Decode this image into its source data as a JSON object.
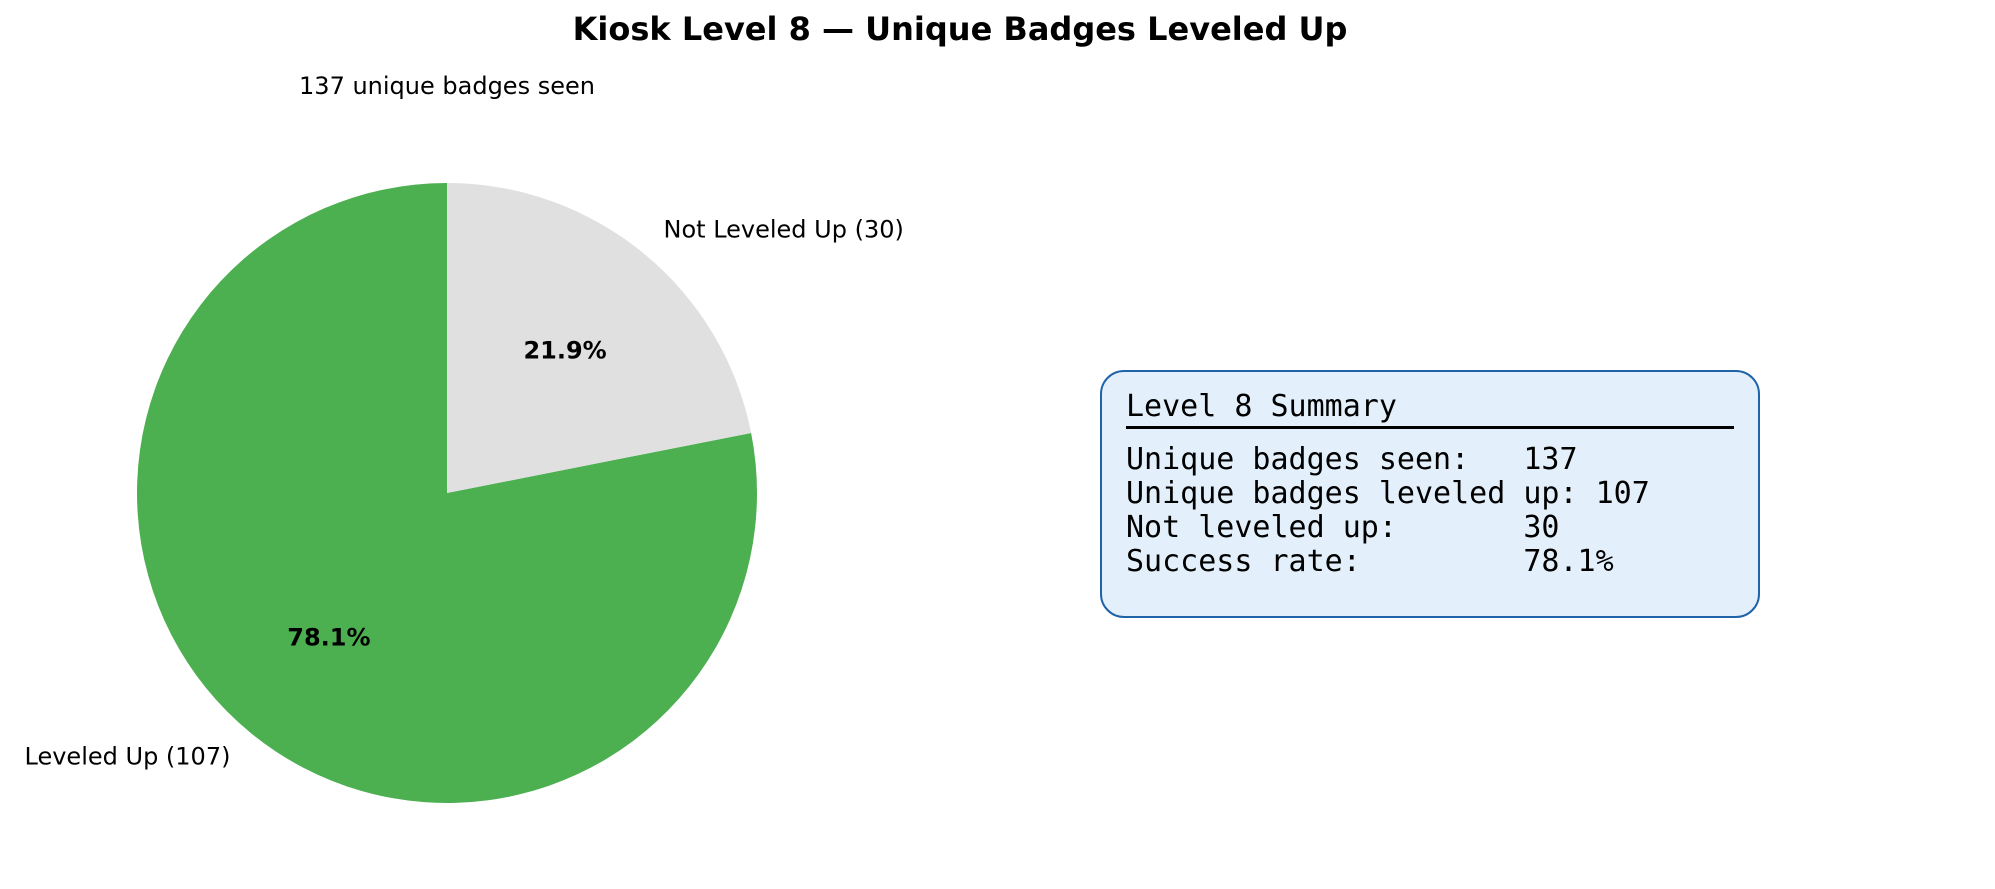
{
  "chart_data": {
    "type": "pie",
    "title": "Kiosk Level 8 — Unique Badges Leveled Up",
    "subtitle": "137 unique badges seen",
    "slices": [
      {
        "label": "Leveled Up (107)",
        "value": 107,
        "percent_label": "78.1%",
        "color": "#4caf50"
      },
      {
        "label": "Not Leveled Up (30)",
        "value": 30,
        "percent_label": "21.9%",
        "color": "#e0e0e0"
      }
    ],
    "start": "top",
    "direction": "counterclockwise"
  },
  "summary": {
    "title": "Level 8 Summary",
    "rows": [
      "Unique badges seen:   137",
      "Unique badges leveled up: 107",
      "Not leveled up:       30",
      "Success rate:         78.1%"
    ],
    "background": "#e3f0fb",
    "border": "#1f63a8"
  }
}
